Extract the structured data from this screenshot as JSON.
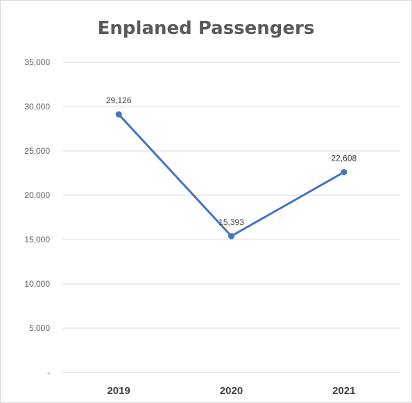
{
  "chart_data": {
    "type": "line",
    "title": "Enplaned Passengers",
    "xlabel": "",
    "ylabel": "",
    "categories": [
      "2019",
      "2020",
      "2021"
    ],
    "series": [
      {
        "values": [
          29126,
          15393,
          22608
        ],
        "data_labels": [
          "29,126",
          "15,393",
          "22,608"
        ],
        "color": "#4472c4"
      }
    ],
    "ylim": [
      0,
      35000
    ],
    "y_ticks": [
      0,
      5000,
      10000,
      15000,
      20000,
      25000,
      30000,
      35000
    ],
    "y_tick_labels": [
      "-",
      "5,000",
      "10,000",
      "15,000",
      "20,000",
      "25,000",
      "30,000",
      "35,000"
    ],
    "grid": true,
    "legend": "none",
    "gridline_color": "#d9d9d9"
  }
}
